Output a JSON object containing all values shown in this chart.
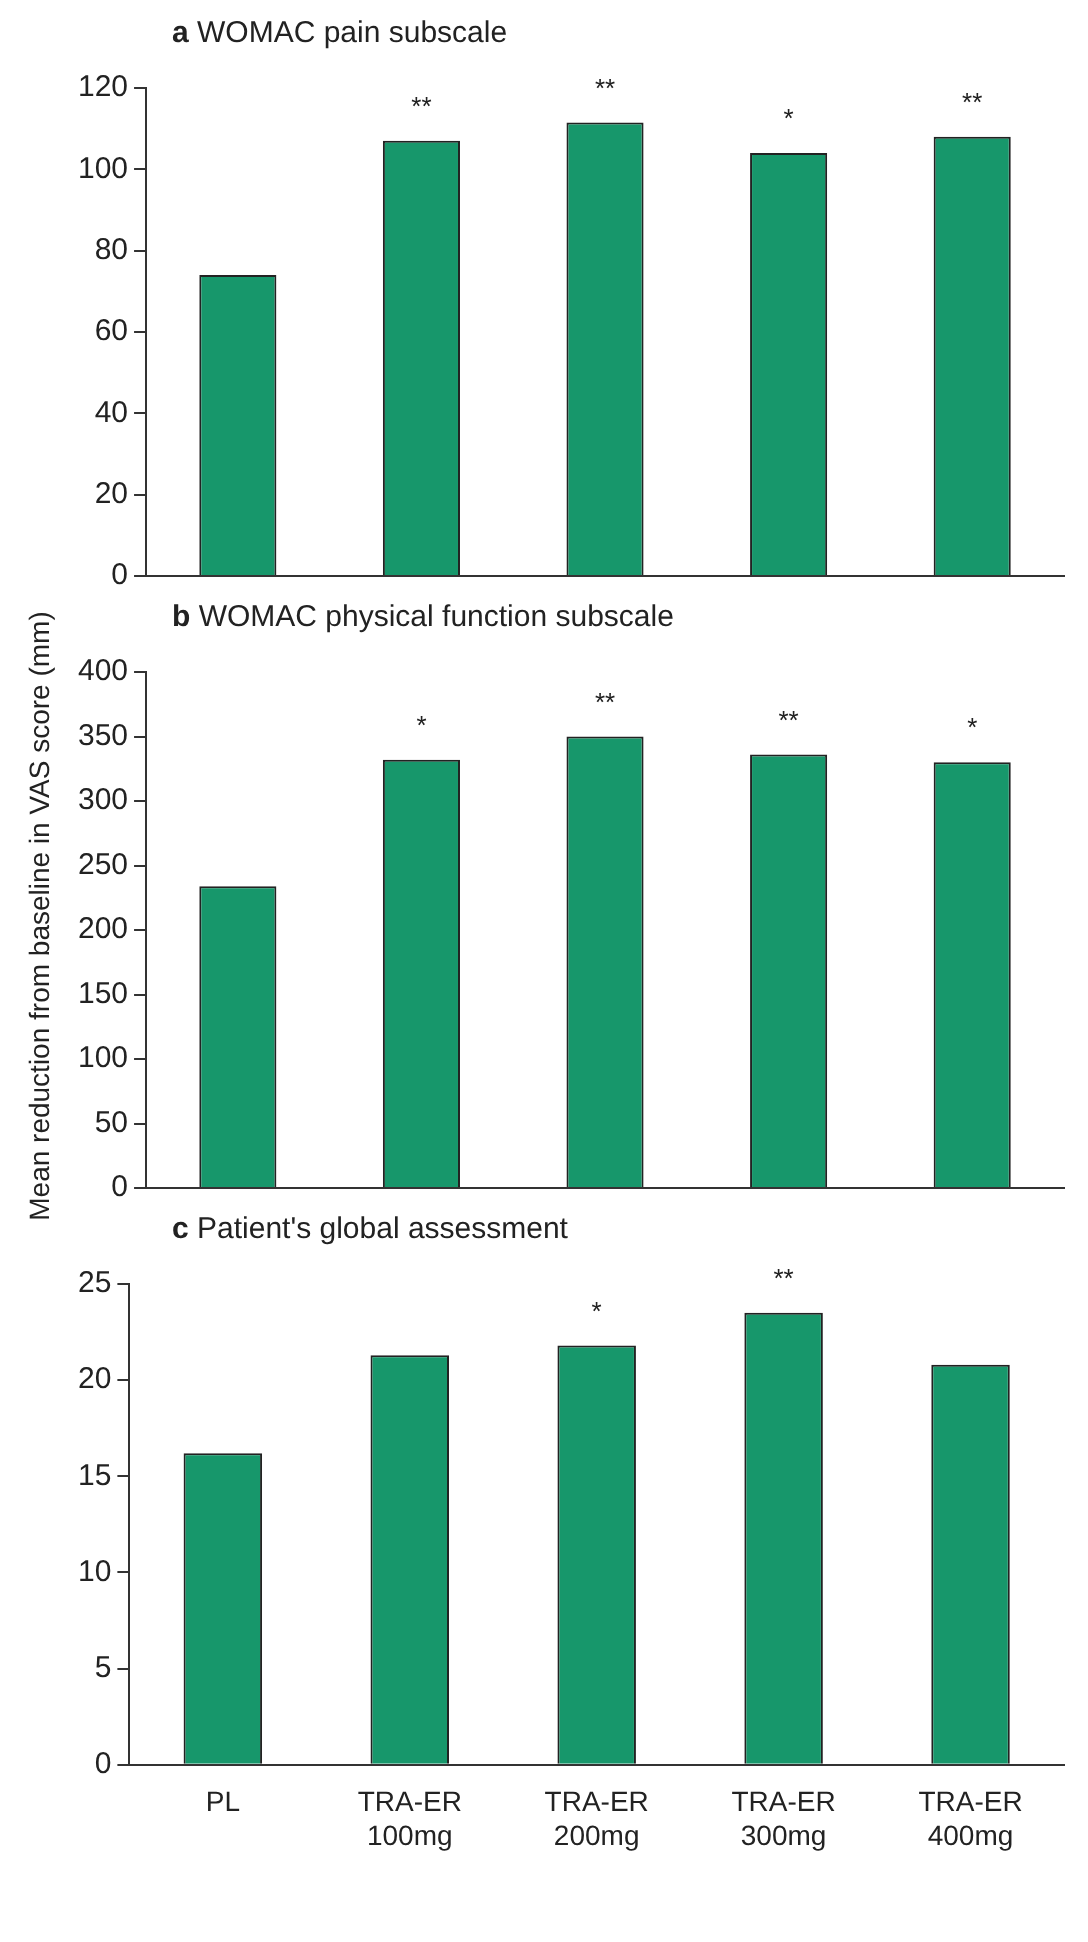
{
  "chart_data": [
    {
      "type": "bar",
      "title": "a WOMAC pain subscale",
      "categories": [
        "PL",
        "TRA-ER 100mg",
        "TRA-ER 200mg",
        "TRA-ER 300mg",
        "TRA-ER 400mg"
      ],
      "values": [
        74,
        107,
        111.5,
        104,
        108
      ],
      "color": "#17976b",
      "ylim": [
        0,
        120
      ],
      "yticks": [
        0,
        20,
        40,
        60,
        80,
        100,
        120
      ],
      "tick_labels": "y",
      "annotations": [
        {
          "text": "**",
          "x": "TRA-ER 100mg",
          "y": 107
        },
        {
          "text": "**",
          "x": "TRA-ER 200mg",
          "y": 111.5
        },
        {
          "text": "*",
          "x": "TRA-ER 300mg",
          "y": 104
        },
        {
          "text": "**",
          "x": "TRA-ER 400mg",
          "y": 108
        }
      ]
    },
    {
      "type": "bar",
      "title": "b WOMAC physical function subscale",
      "ylabel": "Mean reduction from baseline in VAS score (mm)",
      "categories": [
        "PL",
        "TRA-ER 100mg",
        "TRA-ER 200mg",
        "TRA-ER 300mg",
        "TRA-ER 400mg"
      ],
      "values": [
        234,
        332,
        350,
        336,
        330
      ],
      "color": "#17976b",
      "ylim": [
        0,
        400
      ],
      "yticks": [
        0,
        50,
        100,
        150,
        200,
        250,
        300,
        350,
        400
      ],
      "tick_labels": "y",
      "annotations": [
        {
          "text": "*",
          "x": "TRA-ER 100mg",
          "y": 332
        },
        {
          "text": "**",
          "x": "TRA-ER 200mg",
          "y": 350
        },
        {
          "text": "**",
          "x": "TRA-ER 300mg",
          "y": 336
        },
        {
          "text": "*",
          "x": "TRA-ER 400mg",
          "y": 330
        }
      ]
    },
    {
      "type": "bar",
      "title": "c Patient's global assessment",
      "categories": [
        "PL",
        "TRA-ER 100mg",
        "TRA-ER 200mg",
        "TRA-ER 300mg",
        "TRA-ER 400mg"
      ],
      "values": [
        16.2,
        21.3,
        21.8,
        23.5,
        20.8
      ],
      "color": "#17976b",
      "ylim": [
        0,
        25
      ],
      "yticks": [
        0,
        5,
        10,
        15,
        20,
        25
      ],
      "annotations": [
        {
          "text": "*",
          "x": "TRA-ER 200mg",
          "y": 21.8
        },
        {
          "text": "**",
          "x": "TRA-ER 300mg",
          "y": 23.5
        }
      ]
    }
  ]
}
